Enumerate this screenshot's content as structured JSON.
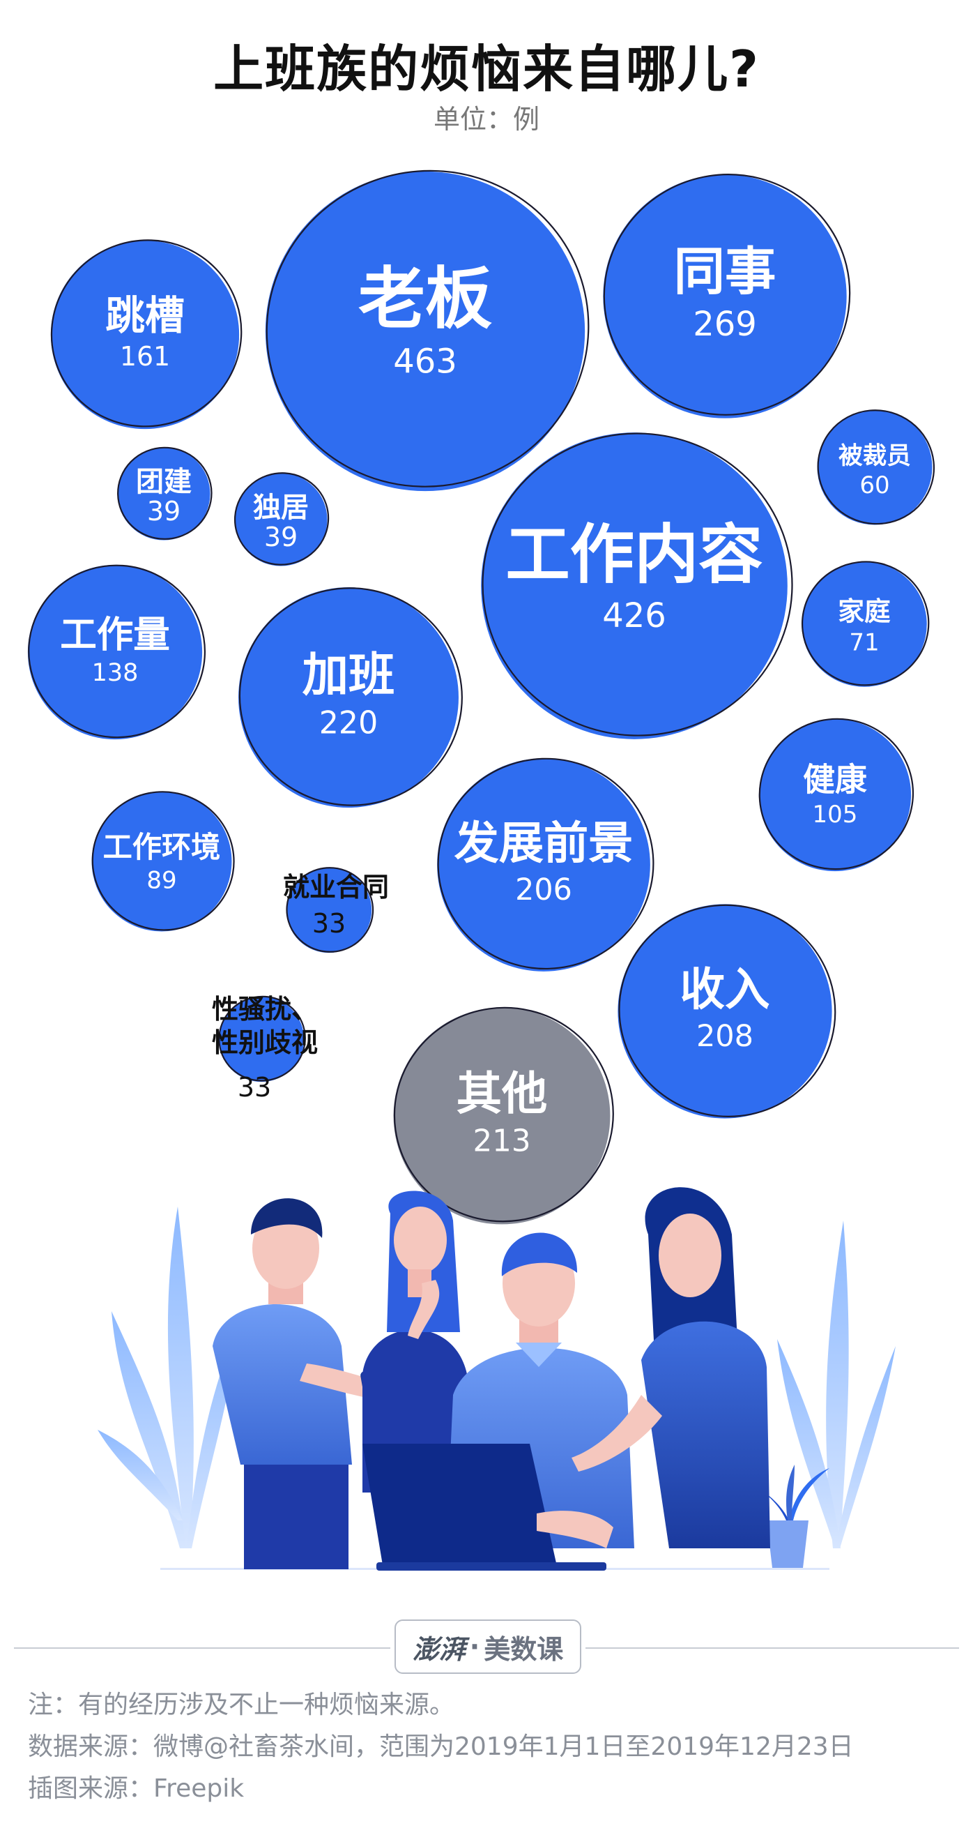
{
  "title": "上班族的烦恼来自哪儿?",
  "unit": "单位：例",
  "chart_data": {
    "type": "bubble",
    "title": "上班族的烦恼来自哪儿?",
    "unit": "单位：例",
    "series": [
      {
        "name": "老板",
        "value": 463
      },
      {
        "name": "工作内容",
        "value": 426
      },
      {
        "name": "同事",
        "value": 269
      },
      {
        "name": "加班",
        "value": 220
      },
      {
        "name": "其他",
        "value": 213
      },
      {
        "name": "收入",
        "value": 208
      },
      {
        "name": "发展前景",
        "value": 206
      },
      {
        "name": "跳槽",
        "value": 161
      },
      {
        "name": "工作量",
        "value": 138
      },
      {
        "name": "健康",
        "value": 105
      },
      {
        "name": "工作环境",
        "value": 89
      },
      {
        "name": "家庭",
        "value": 71
      },
      {
        "name": "被裁员",
        "value": 60
      },
      {
        "name": "团建",
        "value": 39
      },
      {
        "name": "独居",
        "value": 39
      },
      {
        "name": "就业合同",
        "value": 33
      },
      {
        "name": "性骚扰、性别歧视",
        "value": 33
      }
    ],
    "colors": {
      "main": "#2f6df0",
      "other": "#868a97",
      "outline": "#1a1a2e"
    }
  },
  "brand": {
    "logo": "澎湃",
    "sep": "·",
    "name": "美数课"
  },
  "notes": [
    "注：有的经历涉及不止一种烦恼来源。",
    "数据来源：微博@社畜茶水间，范围为2019年1月1日至2019年12月23日",
    "插图来源：Freepik"
  ]
}
